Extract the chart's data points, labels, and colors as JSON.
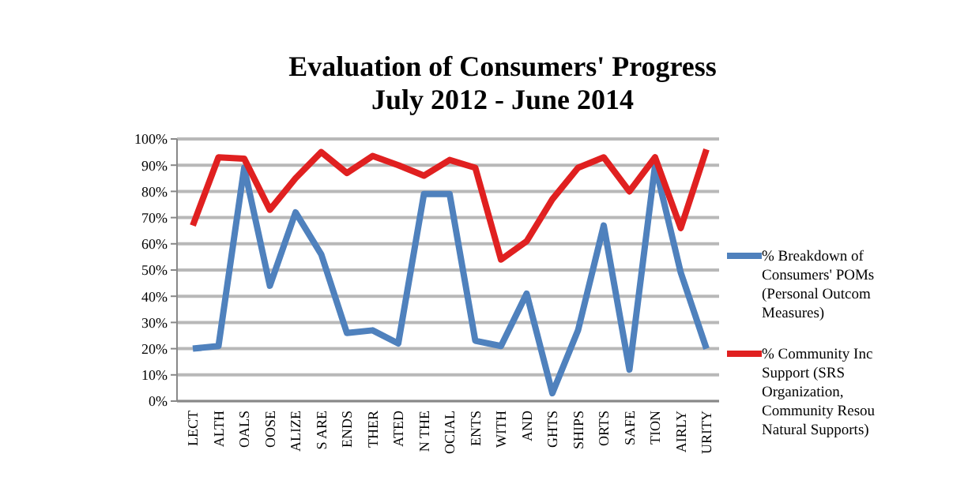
{
  "chart_data": {
    "type": "line",
    "title": "Evaluation of Consumers' Progress",
    "subtitle": "July 2012 - June 2014",
    "categories": [
      "LECT",
      "ALTH",
      "OALS",
      "OOSE",
      "ALIZE",
      "S ARE",
      "ENDS",
      "THER",
      "ATED",
      "N THE",
      "OCIAL",
      "ENTS",
      "WITH",
      "AND",
      "GHTS",
      "SHIPS",
      "ORTS",
      "SAFE",
      "TION",
      "AIRLY",
      "URITY"
    ],
    "series": [
      {
        "name": "% Breakdown of Consumers' POMs (Personal Outcom Measures)",
        "color": "#4f81bd",
        "values": [
          20,
          21,
          89,
          44,
          72,
          56,
          26,
          27,
          22,
          79,
          79,
          23,
          21,
          41,
          3,
          27,
          67,
          12,
          90,
          49,
          20
        ]
      },
      {
        "name": "% Community Inc Support (SRS Organization, Community Resou Natural Supports)",
        "color": "#e02020",
        "values": [
          67,
          93,
          92.5,
          73,
          85,
          95,
          87,
          93.5,
          90,
          86,
          92,
          89,
          54,
          61,
          77,
          89,
          93,
          80,
          93,
          66,
          96
        ]
      }
    ],
    "ylim": [
      0,
      100
    ],
    "yticks": [
      {
        "value": 0,
        "label": "0%"
      },
      {
        "value": 10,
        "label": "10%"
      },
      {
        "value": 20,
        "label": "20%"
      },
      {
        "value": 30,
        "label": "30%"
      },
      {
        "value": 40,
        "label": "40%"
      },
      {
        "value": 50,
        "label": "50%"
      },
      {
        "value": 60,
        "label": "60%"
      },
      {
        "value": 70,
        "label": "70%"
      },
      {
        "value": 80,
        "label": "80%"
      },
      {
        "value": 90,
        "label": "90%"
      },
      {
        "value": 100,
        "label": "100%"
      }
    ],
    "grid": "y",
    "legend": "right",
    "marker": "none",
    "line_style": "solid"
  }
}
